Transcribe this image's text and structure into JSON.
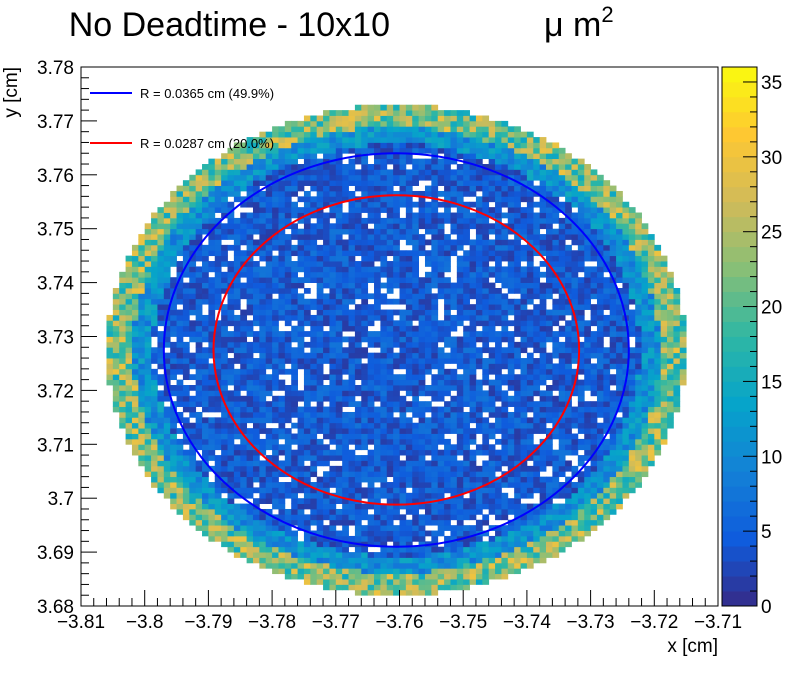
{
  "chart_data": {
    "type": "heatmap",
    "title": "No Deadtime - 10x10",
    "title_unit": "μ m",
    "title_unit_sup": "2",
    "xlabel": "x [cm]",
    "ylabel": "y [cm]",
    "xlim": [
      -3.81,
      -3.71
    ],
    "ylim": [
      3.68,
      3.78
    ],
    "x_ticks": [
      -3.81,
      -3.8,
      -3.79,
      -3.78,
      -3.77,
      -3.76,
      -3.75,
      -3.74,
      -3.73,
      -3.72,
      -3.71
    ],
    "x_tick_labels": [
      "−3.81",
      "−3.8",
      "−3.79",
      "−3.78",
      "−3.77",
      "−3.76",
      "−3.75",
      "−3.74",
      "−3.73",
      "−3.72",
      "−3.71"
    ],
    "y_ticks": [
      3.68,
      3.69,
      3.7,
      3.71,
      3.72,
      3.73,
      3.74,
      3.75,
      3.76,
      3.77,
      3.78
    ],
    "y_tick_labels": [
      "3.68",
      "3.69",
      "3.7",
      "3.71",
      "3.72",
      "3.73",
      "3.74",
      "3.75",
      "3.76",
      "3.77",
      "3.78"
    ],
    "colorbar": {
      "range": [
        0,
        36
      ],
      "ticks": [
        0,
        5,
        10,
        15,
        20,
        25,
        30,
        35
      ],
      "tick_labels": [
        "0",
        "5",
        "10",
        "15",
        "20",
        "25",
        "30",
        "35"
      ],
      "palette": [
        "#352a87",
        "#0f5cdd",
        "#1481d6",
        "#06a4ca",
        "#2eb7a4",
        "#87bf77",
        "#d1bb59",
        "#fec832",
        "#f9fb0e"
      ]
    },
    "heatmap": {
      "bins": 100,
      "center": [
        -3.7605,
        3.7275
      ],
      "radius": 0.0455,
      "typical_interior_count": 5,
      "edge_count": 20,
      "grid": false
    },
    "legend_position": "top-left",
    "circles": [
      {
        "label": "R = 0.0365 cm (49.9%)",
        "color": "#0000ff",
        "cx": -3.7605,
        "cy": 3.7275,
        "r": 0.0365
      },
      {
        "label": "R = 0.0287 cm (20.0%)",
        "color": "#ff0000",
        "cx": -3.7605,
        "cy": 3.7275,
        "r": 0.0287
      }
    ]
  }
}
